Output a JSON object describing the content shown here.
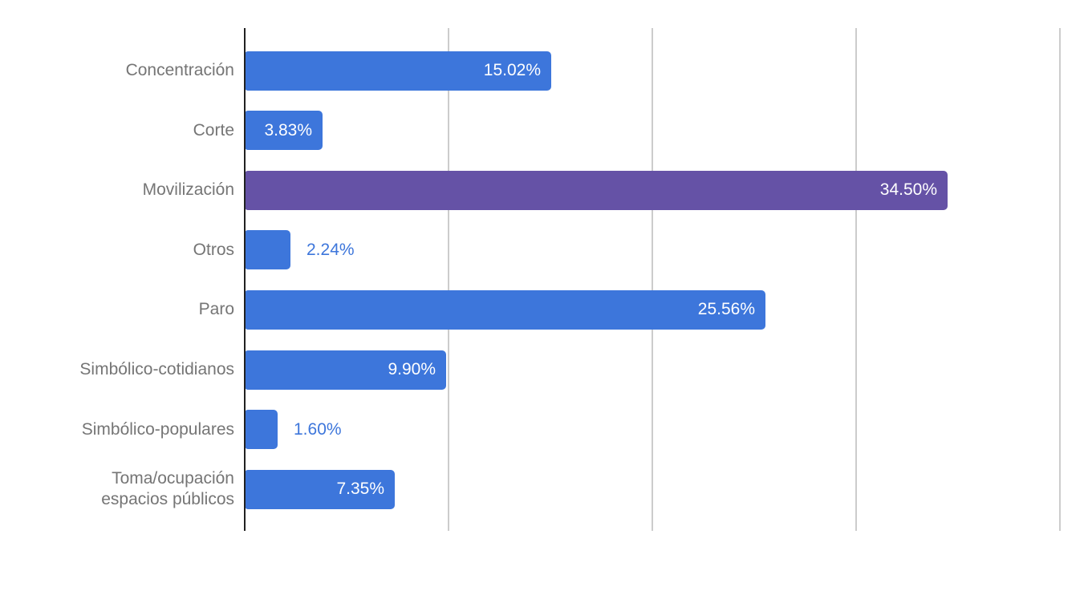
{
  "chart_data": {
    "type": "bar",
    "orientation": "horizontal",
    "title": "",
    "xlabel": "",
    "ylabel": "",
    "legend": "none",
    "grid": true,
    "xlim": [
      0,
      40
    ],
    "gridlines_percent": [
      10,
      20,
      30,
      40
    ],
    "categories": [
      "Concentración",
      "Corte",
      "Movilización",
      "Otros",
      "Paro",
      "Simbólico-cotidianos",
      "Simbólico-populares",
      "Toma/ocupación espacios públicos"
    ],
    "categories_display": [
      "Concentración",
      "Corte",
      "Movilización",
      "Otros",
      "Paro",
      "Simbólico-cotidianos",
      "Simbólico-populares",
      "Toma/ocupación\nespacios públicos"
    ],
    "values": [
      15.02,
      3.83,
      34.5,
      2.24,
      25.56,
      9.9,
      1.6,
      7.35
    ],
    "value_labels": [
      "15.02%",
      "3.83%",
      "34.50%",
      "2.24%",
      "25.56%",
      "9.90%",
      "1.60%",
      "7.35%"
    ],
    "bar_colors": [
      "#3d76db",
      "#3d76db",
      "#6552a6",
      "#3d76db",
      "#3d76db",
      "#3d76db",
      "#3d76db",
      "#3d76db"
    ]
  },
  "style": {
    "series_blue": "#3d76db",
    "highlight_purple": "#6552a6",
    "category_label_color": "#757575",
    "inside_value_color": "#ffffff",
    "gridline_color": "#cccccc",
    "axis_line_color": "#212121",
    "background": "#ffffff"
  }
}
